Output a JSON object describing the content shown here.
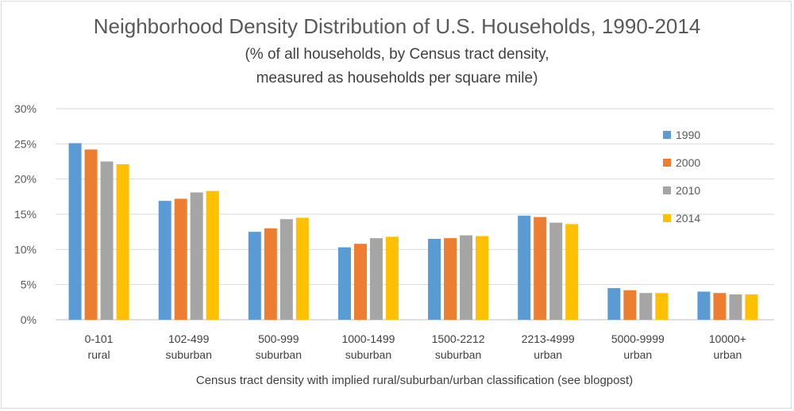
{
  "chart_data": {
    "type": "bar",
    "title": "Neighborhood Density Distribution of U.S. Households, 1990-2014",
    "subtitle_lines": [
      "(% of all households, by Census tract density,",
      "measured as households per square mile)"
    ],
    "xlabel": "Census tract density with implied rural/suburban/urban classification (see blogpost)",
    "ylabel": "",
    "ylim": [
      0,
      30
    ],
    "yticks": [
      "0%",
      "5%",
      "10%",
      "15%",
      "20%",
      "25%",
      "30%"
    ],
    "grid": true,
    "legend_position": "right",
    "categories": [
      [
        "0-101",
        "rural"
      ],
      [
        "102-499",
        "suburban"
      ],
      [
        "500-999",
        "suburban"
      ],
      [
        "1000-1499",
        "suburban"
      ],
      [
        "1500-2212",
        "suburban"
      ],
      [
        "2213-4999",
        "urban"
      ],
      [
        "5000-9999",
        "urban"
      ],
      [
        "10000+",
        "urban"
      ]
    ],
    "series": [
      {
        "name": "1990",
        "color": "#5b9bd5",
        "values": [
          25.1,
          16.9,
          12.5,
          10.3,
          11.5,
          14.8,
          4.5,
          4.0
        ]
      },
      {
        "name": "2000",
        "color": "#ed7d31",
        "values": [
          24.2,
          17.2,
          13.0,
          10.8,
          11.6,
          14.6,
          4.2,
          3.8
        ]
      },
      {
        "name": "2010",
        "color": "#a5a5a5",
        "values": [
          22.5,
          18.1,
          14.3,
          11.6,
          12.0,
          13.8,
          3.8,
          3.6
        ]
      },
      {
        "name": "2014",
        "color": "#ffc000",
        "values": [
          22.1,
          18.3,
          14.5,
          11.8,
          11.9,
          13.6,
          3.8,
          3.6
        ]
      }
    ]
  }
}
